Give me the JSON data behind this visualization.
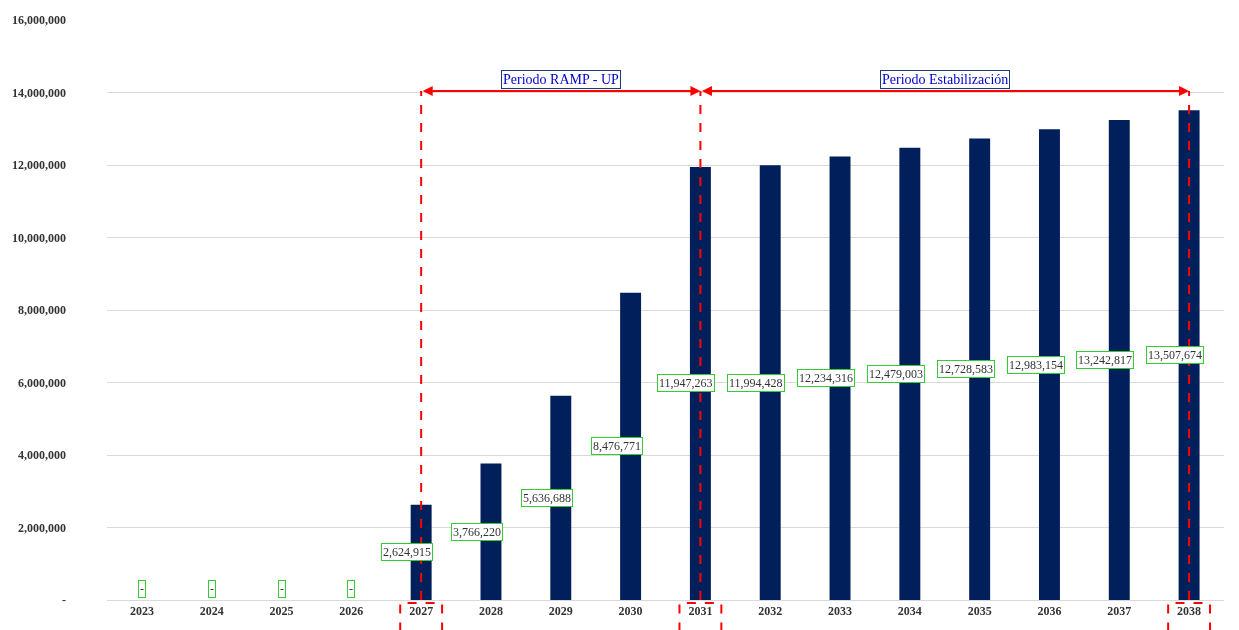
{
  "chart_data": {
    "type": "bar",
    "categories": [
      "2023",
      "2024",
      "2025",
      "2026",
      "2027",
      "2028",
      "2029",
      "2030",
      "2031",
      "2032",
      "2033",
      "2034",
      "2035",
      "2036",
      "2037",
      "2038"
    ],
    "values": [
      0,
      0,
      0,
      0,
      2624915,
      3766220,
      5636688,
      8476771,
      11947263,
      11994428,
      12234316,
      12479003,
      12728583,
      12983154,
      13242817,
      13507674
    ],
    "value_labels": [
      "-",
      "-",
      "-",
      "-",
      "2,624,915",
      "3,766,220",
      "5,636,688",
      "8,476,771",
      "11,947,263",
      "11,994,428",
      "12,234,316",
      "12,479,003",
      "12,728,583",
      "12,983,154",
      "13,242,817",
      "13,507,674"
    ],
    "color": "#001f5b",
    "ylim": [
      0,
      16000000
    ],
    "yticks": [
      {
        "value": 0,
        "label": "-"
      },
      {
        "value": 2000000,
        "label": "2,000,000"
      },
      {
        "value": 4000000,
        "label": "4,000,000"
      },
      {
        "value": 6000000,
        "label": "6,000,000"
      },
      {
        "value": 8000000,
        "label": "8,000,000"
      },
      {
        "value": 10000000,
        "label": "10,000,000"
      },
      {
        "value": 12000000,
        "label": "12,000,000"
      },
      {
        "value": 14000000,
        "label": "14,000,000"
      },
      {
        "value": 16000000,
        "label": "16,000,000"
      }
    ],
    "grid": "y",
    "ref_lines": [
      {
        "axis": "x",
        "value": "2027",
        "color": "#ff0000",
        "line_style": "dashed"
      },
      {
        "axis": "x",
        "value": "2031",
        "color": "#ff0000",
        "line_style": "dashed"
      },
      {
        "axis": "x",
        "value": "2038",
        "color": "#ff0000",
        "line_style": "dashed"
      }
    ],
    "annotations": [
      "Periodo RAMP - UP",
      "Periodo Estabilización"
    ]
  }
}
